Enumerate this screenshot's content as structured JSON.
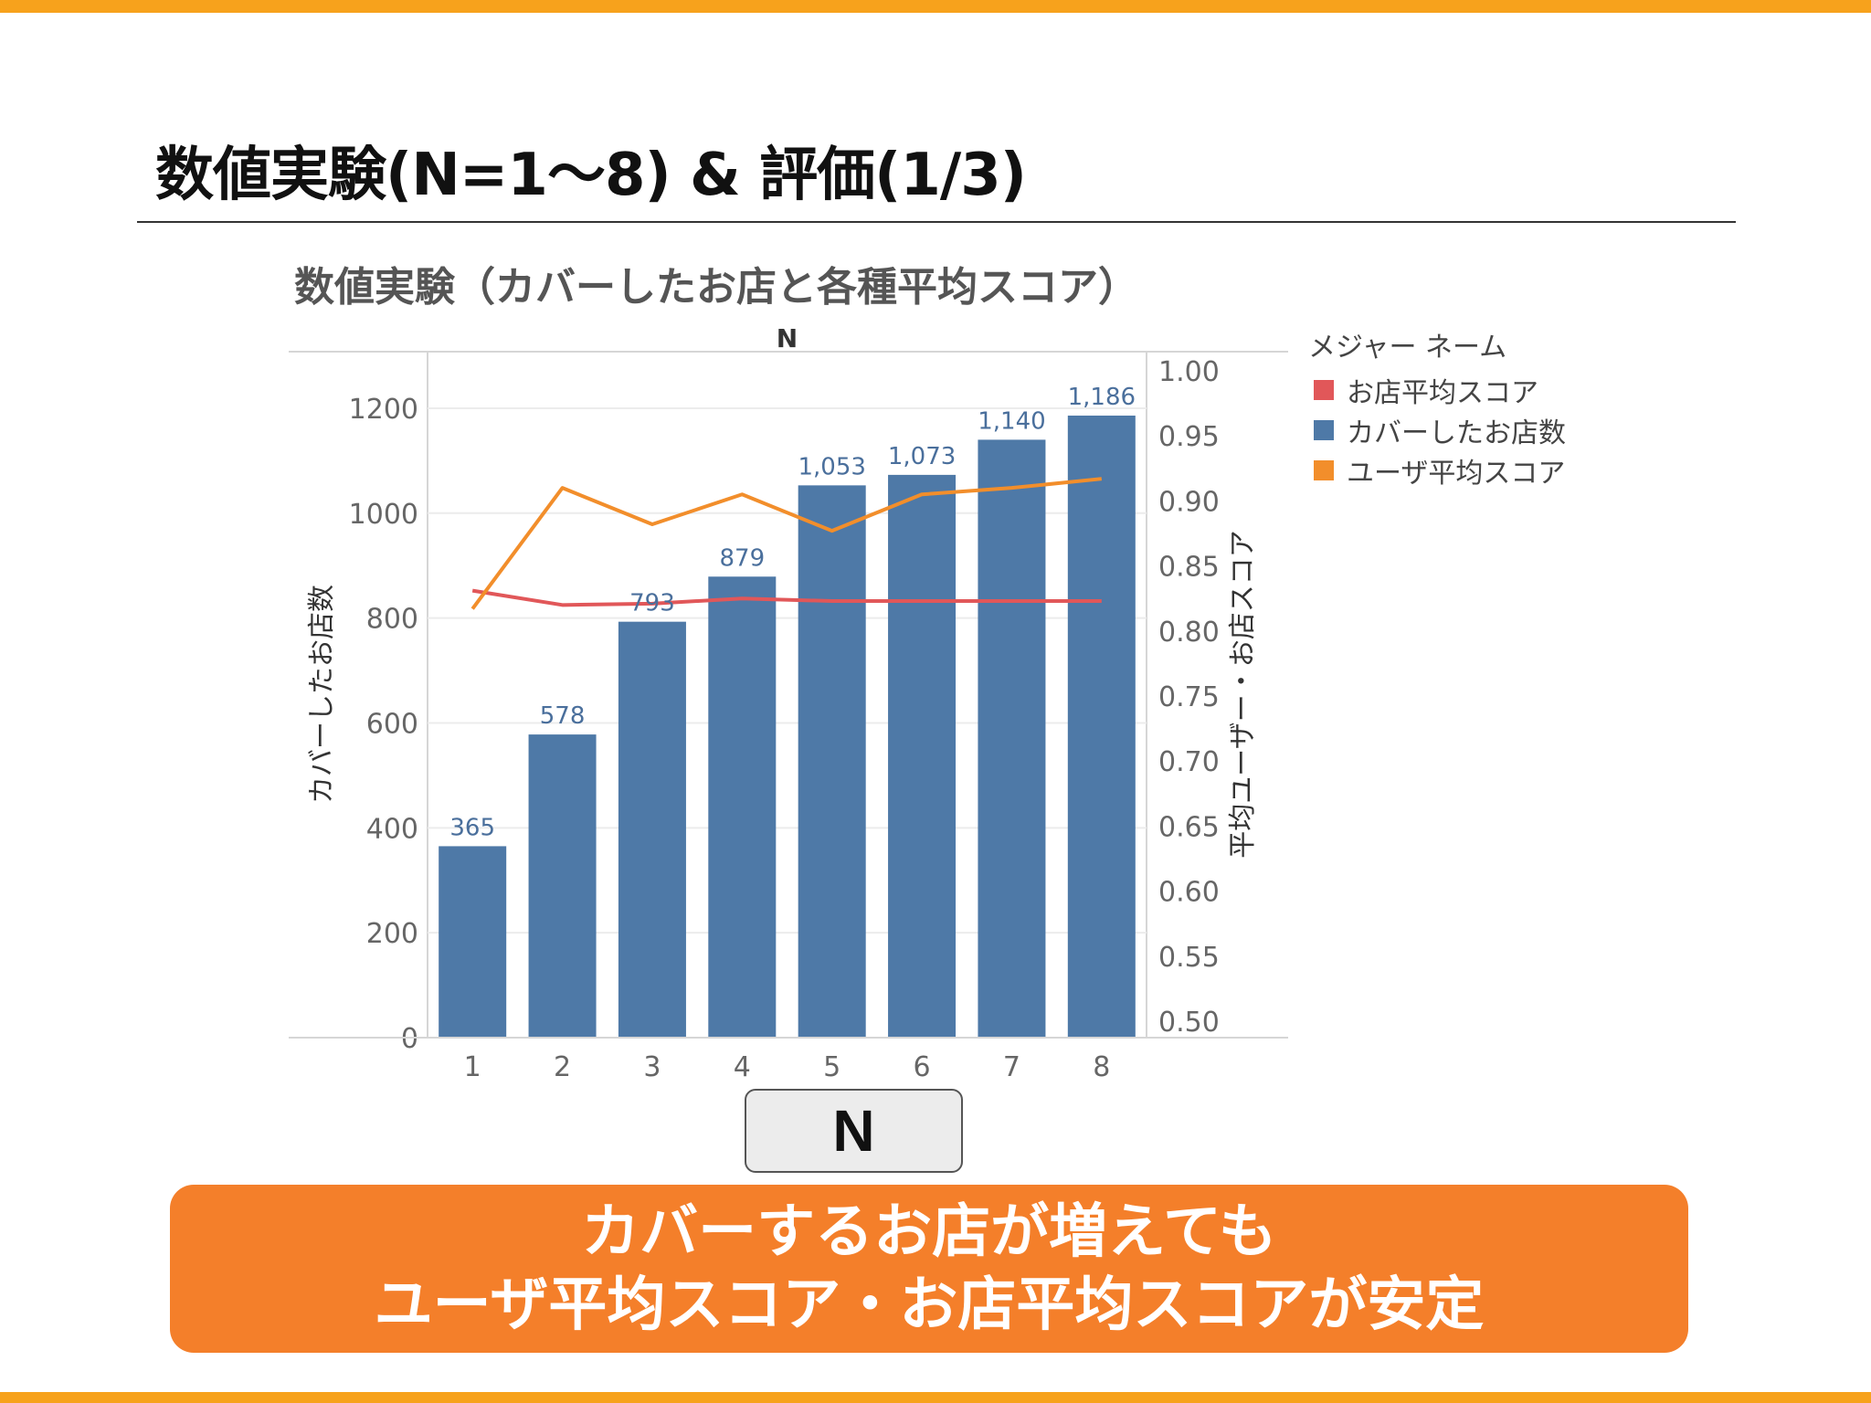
{
  "slide": {
    "title": "数値実験(N=1〜8) & 評価(1/3)",
    "axis_button_label": "N",
    "callout_line1": "カバーするお店が増えても",
    "callout_line2": "ユーザ平均スコア・お店平均スコアが安定"
  },
  "colors": {
    "accent_bar": "#f7a21c",
    "callout_bg": "#f47f2a",
    "bar": "#4e79a7",
    "user_score_line": "#f28e2b",
    "shop_score_line": "#e15759"
  },
  "chart_data": {
    "type": "bar",
    "title": "数値実験（カバーしたお店と各種平均スコア）",
    "column_header": "N",
    "xlabel": "N",
    "ylabel": "カバーしたお店数",
    "y2label": "平均ユーザー・お店スコア",
    "categories": [
      "1",
      "2",
      "3",
      "4",
      "5",
      "6",
      "7",
      "8"
    ],
    "ylim": [
      0,
      1300
    ],
    "yticks": [
      0,
      200,
      400,
      600,
      800,
      1000,
      1200
    ],
    "y2lim": [
      0.5,
      1.0
    ],
    "y2ticks": [
      "0.50",
      "0.55",
      "0.60",
      "0.65",
      "0.70",
      "0.75",
      "0.80",
      "0.85",
      "0.90",
      "0.95",
      "1.00"
    ],
    "legend_title": "メジャー ネーム",
    "legend_position": "right",
    "series": [
      {
        "name": "カバーしたお店数",
        "type": "bar",
        "axis": "left",
        "values": [
          365,
          578,
          793,
          879,
          1053,
          1073,
          1140,
          1186
        ],
        "labels": [
          "365",
          "578",
          "793",
          "879",
          "1,053",
          "1,073",
          "1,140",
          "1,186"
        ]
      },
      {
        "name": "ユーザ平均スコア",
        "type": "line",
        "axis": "right",
        "values": [
          0.817,
          0.91,
          0.882,
          0.905,
          0.877,
          0.905,
          0.91,
          0.917
        ]
      },
      {
        "name": "お店平均スコア",
        "type": "line",
        "axis": "right",
        "values": [
          0.831,
          0.82,
          0.821,
          0.825,
          0.823,
          0.823,
          0.823,
          0.823
        ]
      }
    ],
    "legend_order": [
      "お店平均スコア",
      "カバーしたお店数",
      "ユーザ平均スコア"
    ],
    "grid": "horizontal"
  }
}
